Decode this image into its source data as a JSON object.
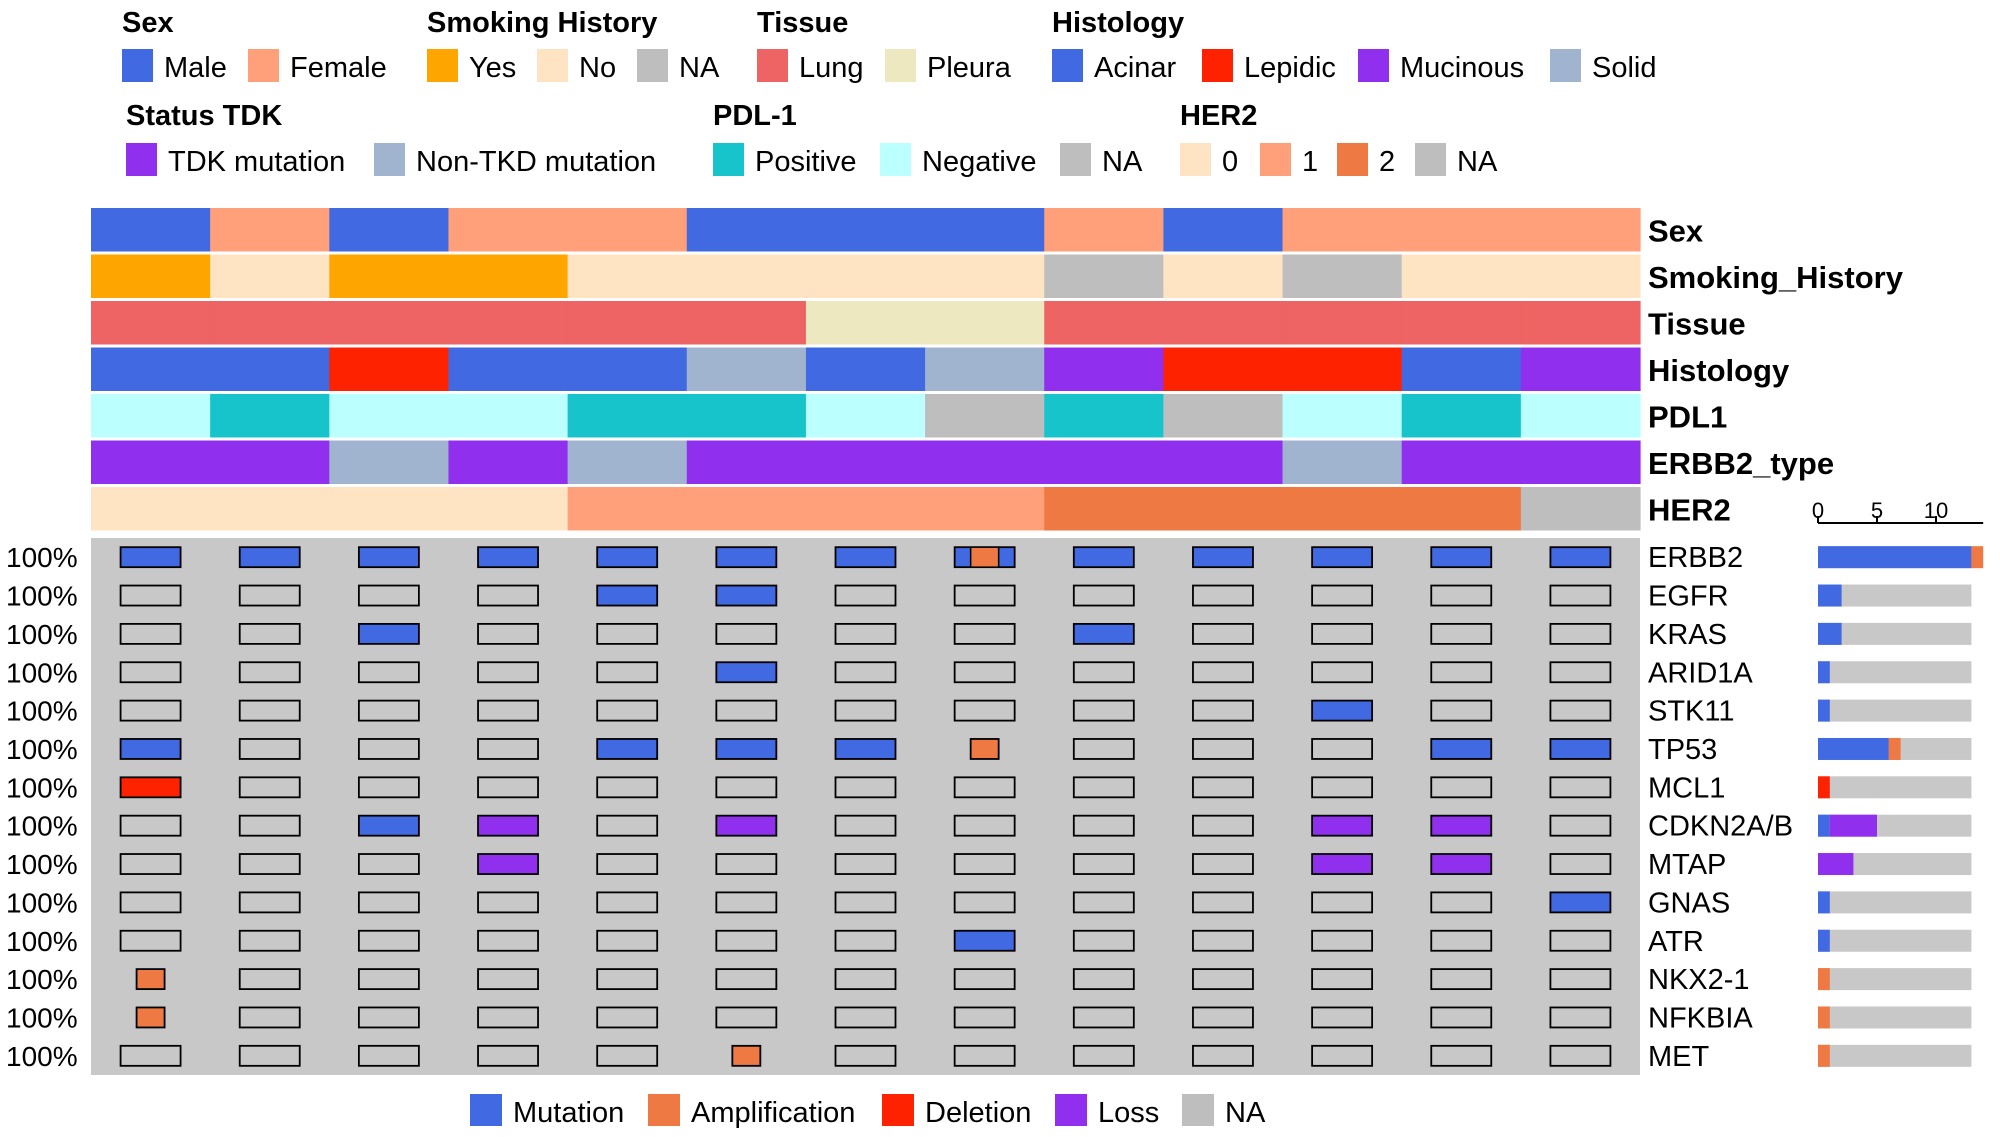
{
  "legend_groups": [
    {
      "title": "Sex",
      "items": [
        {
          "label": "Male",
          "color": "#4169E1"
        },
        {
          "label": "Female",
          "color": "#FFA07A"
        }
      ]
    },
    {
      "title": "Smoking History",
      "items": [
        {
          "label": "Yes",
          "color": "#FFA500"
        },
        {
          "label": "No",
          "color": "#FFE4C4"
        },
        {
          "label": "NA",
          "color": "#BEBEBE"
        }
      ]
    },
    {
      "title": "Tissue",
      "items": [
        {
          "label": "Lung",
          "color": "#EE6363"
        },
        {
          "label": "Pleura",
          "color": "#EEE8C0"
        }
      ]
    },
    {
      "title": "Histology",
      "items": [
        {
          "label": "Acinar",
          "color": "#4169E1"
        },
        {
          "label": "Lepidic",
          "color": "#FF2200"
        },
        {
          "label": "Mucinous",
          "color": "#9030EE"
        },
        {
          "label": "Solid",
          "color": "#A0B4D0"
        }
      ]
    },
    {
      "title": "Status TDK",
      "items": [
        {
          "label": "TDK mutation",
          "color": "#9030EE"
        },
        {
          "label": "Non-TKD mutation",
          "color": "#A0B4D0"
        }
      ]
    },
    {
      "title": "PDL-1",
      "items": [
        {
          "label": "Positive",
          "color": "#18C4CC"
        },
        {
          "label": "Negative",
          "color": "#BBFFFF"
        },
        {
          "label": "NA",
          "color": "#BEBEBE"
        }
      ]
    },
    {
      "title": "HER2",
      "items": [
        {
          "label": "0",
          "color": "#FFE4C4"
        },
        {
          "label": "1",
          "color": "#FFA07A"
        },
        {
          "label": "2",
          "color": "#EE7942"
        },
        {
          "label": "NA",
          "color": "#BEBEBE"
        }
      ]
    }
  ],
  "bottom_legend": [
    {
      "label": "Mutation",
      "color": "#4169E1"
    },
    {
      "label": "Amplification",
      "color": "#EE7942"
    },
    {
      "label": "Deletion",
      "color": "#FF2200"
    },
    {
      "label": "Loss",
      "color": "#9030EE"
    },
    {
      "label": "NA",
      "color": "#BEBEBE"
    }
  ],
  "chart_data": {
    "type": "heatmap",
    "n_samples": 13,
    "annotation_tracks": [
      {
        "name": "Sex",
        "values": [
          "Male",
          "Female",
          "Male",
          "Female",
          "Female",
          "Male",
          "Male",
          "Male",
          "Female",
          "Male",
          "Female",
          "Female",
          "Female"
        ]
      },
      {
        "name": "Smoking_History",
        "values": [
          "Yes",
          "No",
          "Yes",
          "Yes",
          "No",
          "No",
          "No",
          "No",
          "NA",
          "No",
          "NA",
          "No",
          "No"
        ]
      },
      {
        "name": "Tissue",
        "values": [
          "Lung",
          "Lung",
          "Lung",
          "Lung",
          "Lung",
          "Lung",
          "Pleura",
          "Pleura",
          "Lung",
          "Lung",
          "Lung",
          "Lung",
          "Lung"
        ]
      },
      {
        "name": "Histology",
        "values": [
          "Acinar",
          "Acinar",
          "Lepidic",
          "Acinar",
          "Acinar",
          "Solid",
          "Acinar",
          "Solid",
          "Mucinous",
          "Lepidic",
          "Lepidic",
          "Acinar",
          "Mucinous"
        ]
      },
      {
        "name": "PDL1",
        "values": [
          "Negative",
          "Positive",
          "Negative",
          "Negative",
          "Positive",
          "Positive",
          "Negative",
          "NA",
          "Positive",
          "NA",
          "Negative",
          "Positive",
          "Negative"
        ]
      },
      {
        "name": "ERBB2_type",
        "values": [
          "TDK mutation",
          "TDK mutation",
          "Non-TKD mutation",
          "TDK mutation",
          "Non-TKD mutation",
          "TDK mutation",
          "TDK mutation",
          "TDK mutation",
          "TDK mutation",
          "TDK mutation",
          "Non-TKD mutation",
          "TDK mutation",
          "TDK mutation"
        ]
      },
      {
        "name": "HER2",
        "values": [
          "0",
          "0",
          "0",
          "0",
          "1",
          "1",
          "1",
          "1",
          "2",
          "2",
          "2",
          "2",
          "NA"
        ]
      }
    ],
    "genes": [
      {
        "name": "ERBB2",
        "pct": "100%",
        "cells": [
          "M",
          "M",
          "M",
          "M",
          "M",
          "M",
          "M",
          "M+A",
          "M",
          "M",
          "M",
          "M",
          "M"
        ]
      },
      {
        "name": "EGFR",
        "pct": "100%",
        "cells": [
          "",
          "",
          "",
          "",
          "M",
          "M",
          "",
          "",
          "",
          "",
          "",
          "",
          ""
        ]
      },
      {
        "name": "KRAS",
        "pct": "100%",
        "cells": [
          "",
          "",
          "M",
          "",
          "",
          "",
          "",
          "",
          "M",
          "",
          "",
          "",
          ""
        ]
      },
      {
        "name": "ARID1A",
        "pct": "100%",
        "cells": [
          "",
          "",
          "",
          "",
          "",
          "M",
          "",
          "",
          "",
          "",
          "",
          "",
          ""
        ]
      },
      {
        "name": "STK11",
        "pct": "100%",
        "cells": [
          "",
          "",
          "",
          "",
          "",
          "",
          "",
          "",
          "",
          "",
          "M",
          "",
          ""
        ]
      },
      {
        "name": "TP53",
        "pct": "100%",
        "cells": [
          "M",
          "",
          "",
          "",
          "M",
          "M",
          "M",
          "A",
          "",
          "",
          "",
          "M",
          "M"
        ]
      },
      {
        "name": "MCL1",
        "pct": "100%",
        "cells": [
          "D",
          "",
          "",
          "",
          "",
          "",
          "",
          "",
          "",
          "",
          "",
          "",
          ""
        ]
      },
      {
        "name": "CDKN2A/B",
        "pct": "100%",
        "cells": [
          "",
          "",
          "M",
          "L",
          "",
          "L",
          "",
          "",
          "",
          "",
          "L",
          "L",
          ""
        ]
      },
      {
        "name": "MTAP",
        "pct": "100%",
        "cells": [
          "",
          "",
          "",
          "L",
          "",
          "",
          "",
          "",
          "",
          "",
          "L",
          "L",
          ""
        ]
      },
      {
        "name": "GNAS",
        "pct": "100%",
        "cells": [
          "",
          "",
          "",
          "",
          "",
          "",
          "",
          "",
          "",
          "",
          "",
          "",
          "M"
        ]
      },
      {
        "name": "ATR",
        "pct": "100%",
        "cells": [
          "",
          "",
          "",
          "",
          "",
          "",
          "",
          "M",
          "",
          "",
          "",
          "",
          ""
        ]
      },
      {
        "name": "NKX2-1",
        "pct": "100%",
        "cells": [
          "A",
          "",
          "",
          "",
          "",
          "",
          "",
          "",
          "",
          "",
          "",
          "",
          ""
        ]
      },
      {
        "name": "NFKBIA",
        "pct": "100%",
        "cells": [
          "A",
          "",
          "",
          "",
          "",
          "",
          "",
          "",
          "",
          "",
          "",
          "",
          ""
        ]
      },
      {
        "name": "MET",
        "pct": "100%",
        "cells": [
          "",
          "",
          "",
          "",
          "",
          "A",
          "",
          "",
          "",
          "",
          "",
          "",
          ""
        ]
      }
    ],
    "row_barplot": {
      "xticks": [
        "0",
        "5",
        "10"
      ],
      "xlim": [
        0,
        14
      ],
      "total": 13,
      "counts": [
        {
          "mutation": 13,
          "amplification": 1,
          "deletion": 0,
          "loss": 0
        },
        {
          "mutation": 2,
          "amplification": 0,
          "deletion": 0,
          "loss": 0
        },
        {
          "mutation": 2,
          "amplification": 0,
          "deletion": 0,
          "loss": 0
        },
        {
          "mutation": 1,
          "amplification": 0,
          "deletion": 0,
          "loss": 0
        },
        {
          "mutation": 1,
          "amplification": 0,
          "deletion": 0,
          "loss": 0
        },
        {
          "mutation": 6,
          "amplification": 1,
          "deletion": 0,
          "loss": 0
        },
        {
          "mutation": 0,
          "amplification": 0,
          "deletion": 1,
          "loss": 0
        },
        {
          "mutation": 1,
          "amplification": 0,
          "deletion": 0,
          "loss": 4
        },
        {
          "mutation": 0,
          "amplification": 0,
          "deletion": 0,
          "loss": 3
        },
        {
          "mutation": 1,
          "amplification": 0,
          "deletion": 0,
          "loss": 0
        },
        {
          "mutation": 1,
          "amplification": 0,
          "deletion": 0,
          "loss": 0
        },
        {
          "mutation": 0,
          "amplification": 1,
          "deletion": 0,
          "loss": 0
        },
        {
          "mutation": 0,
          "amplification": 1,
          "deletion": 0,
          "loss": 0
        },
        {
          "mutation": 0,
          "amplification": 1,
          "deletion": 0,
          "loss": 0
        }
      ]
    }
  },
  "colors": {
    "annotation_maps": {
      "Sex": {
        "Male": "#4169E1",
        "Female": "#FFA07A"
      },
      "Smoking_History": {
        "Yes": "#FFA500",
        "No": "#FFE4C4",
        "NA": "#BEBEBE"
      },
      "Tissue": {
        "Lung": "#EE6363",
        "Pleura": "#EEE8C0"
      },
      "Histology": {
        "Acinar": "#4169E1",
        "Lepidic": "#FF2200",
        "Mucinous": "#9030EE",
        "Solid": "#A0B4D0"
      },
      "PDL1": {
        "Positive": "#18C4CC",
        "Negative": "#BBFFFF",
        "NA": "#BEBEBE"
      },
      "ERBB2_type": {
        "TDK mutation": "#9030EE",
        "Non-TKD mutation": "#A0B4D0"
      },
      "HER2": {
        "0": "#FFE4C4",
        "1": "#FFA07A",
        "2": "#EE7942",
        "NA": "#BEBEBE"
      }
    },
    "alteration": {
      "M": "#4169E1",
      "A": "#EE7942",
      "D": "#FF2200",
      "L": "#9030EE",
      "NA": "#C8C8C8"
    },
    "grid_background": "#C8C8C8"
  }
}
